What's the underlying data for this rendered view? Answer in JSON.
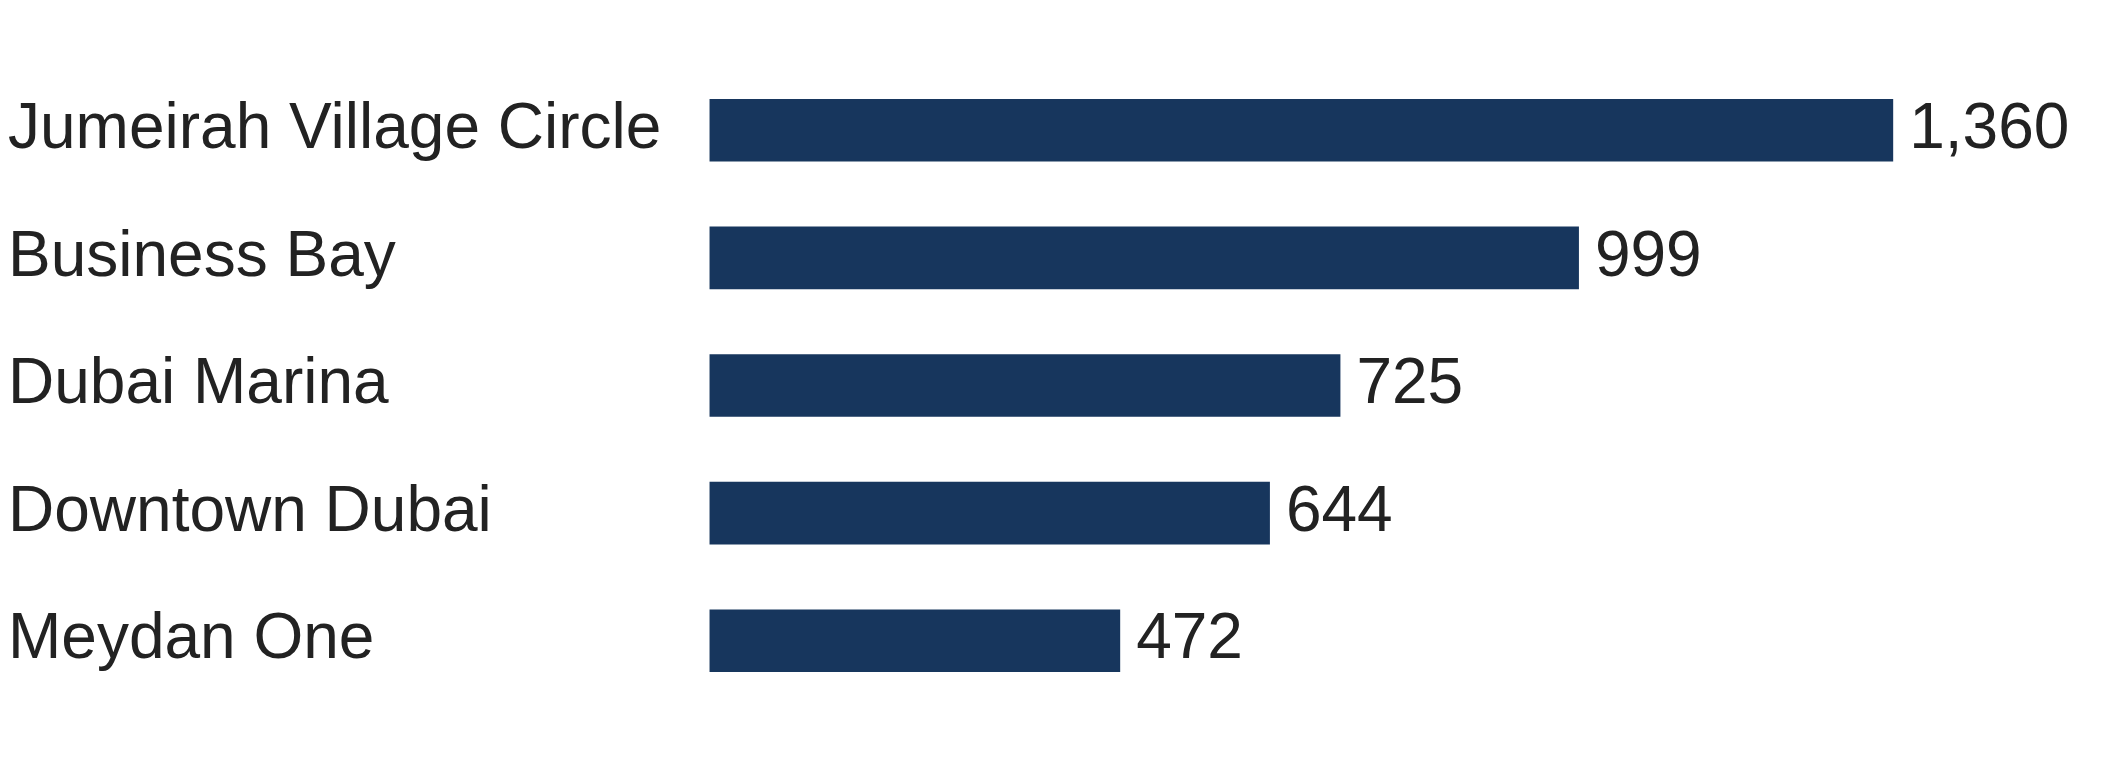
{
  "chart_data": {
    "type": "bar",
    "orientation": "horizontal",
    "categories": [
      "Jumeirah Village Circle",
      "Business Bay",
      "Dubai Marina",
      "Downtown Dubai",
      "Meydan One"
    ],
    "values": [
      1360,
      999,
      725,
      644,
      472
    ],
    "color": "#17365d",
    "value_labels": [
      "1,360",
      "999",
      "725",
      "644",
      "472"
    ]
  }
}
